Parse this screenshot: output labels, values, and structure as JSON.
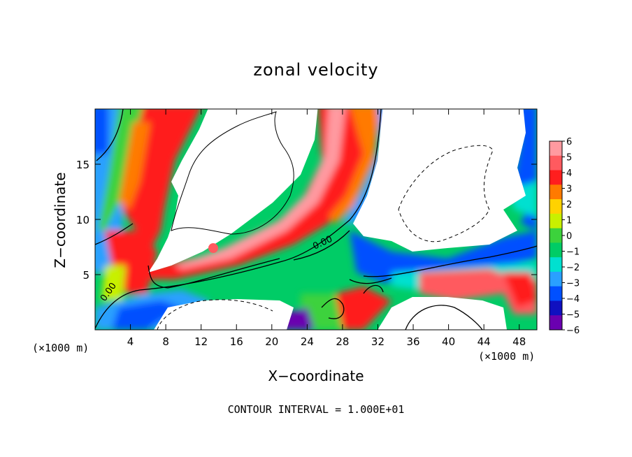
{
  "chart_data": {
    "type": "heatmap",
    "title": "zonal velocity",
    "xlabel": "X−coordinate",
    "ylabel": "Z−coordinate",
    "x_unit": "(×1000 m)",
    "y_unit": "(×1000 m)",
    "xlim": [
      0,
      50
    ],
    "ylim": [
      0,
      20
    ],
    "x_ticks": [
      4,
      8,
      12,
      16,
      20,
      24,
      28,
      32,
      36,
      40,
      44,
      48
    ],
    "y_ticks": [
      5,
      10,
      15
    ],
    "colorbar": {
      "ticks": [
        6,
        5,
        4,
        3,
        2,
        1,
        0,
        -1,
        -2,
        -3,
        -4,
        -5,
        -6
      ],
      "colors": [
        "#ff9aa0",
        "#ff5a5f",
        "#ff1e1e",
        "#ff7a00",
        "#ffd200",
        "#c8f000",
        "#3cd23c",
        "#00cc66",
        "#00e0d0",
        "#2aa0ff",
        "#0050ff",
        "#1010c0",
        "#6a00b0"
      ]
    },
    "contour_labels": [
      "0.00",
      "0.00"
    ],
    "contour_interval_text": "CONTOUR INTERVAL = 1.000E+01",
    "regions": [
      {
        "label": "upper-left white core",
        "value": null
      },
      {
        "label": "upper-right white core",
        "value": null
      },
      {
        "label": "lower white region",
        "value": null
      },
      {
        "label": "central red/orange jet",
        "value": 5
      }
    ]
  }
}
